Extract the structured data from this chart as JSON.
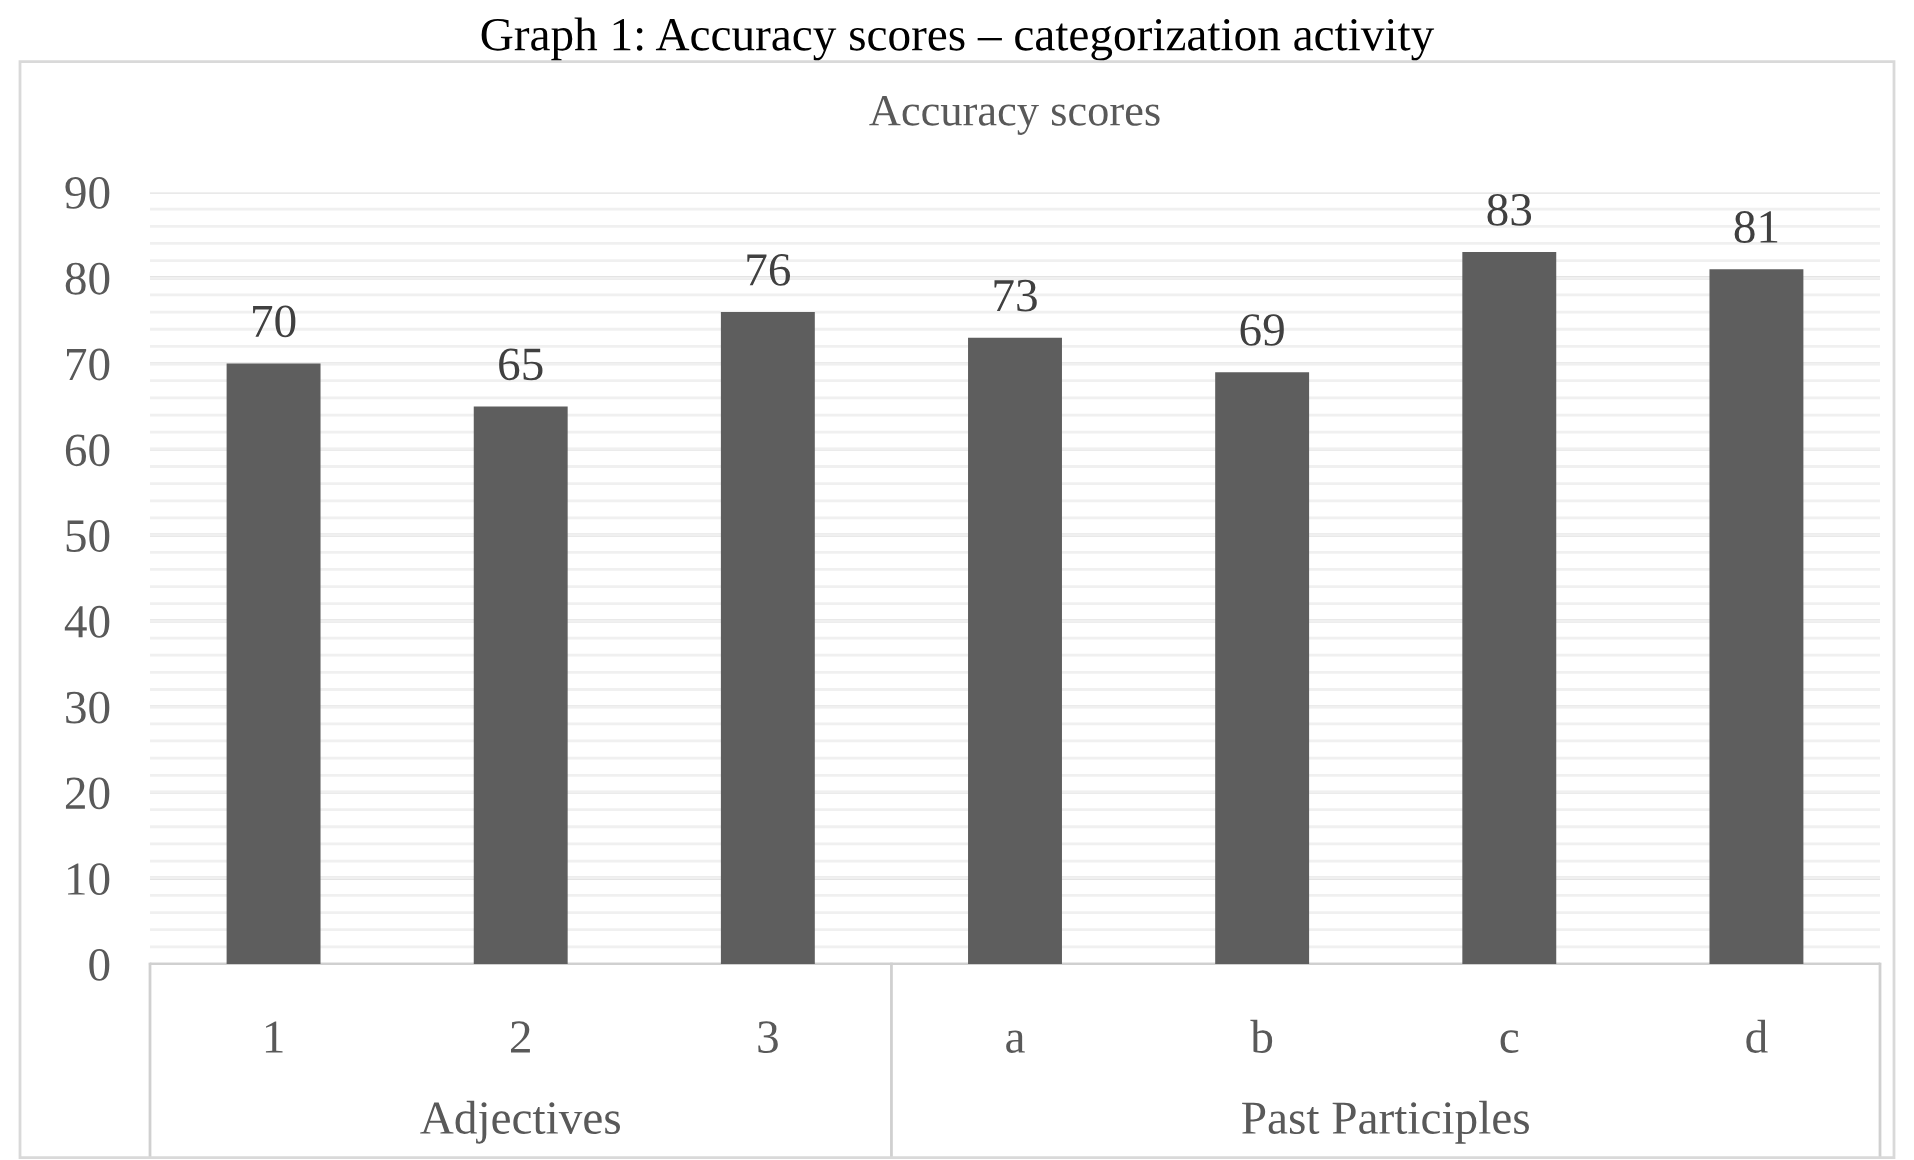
{
  "chart_data": {
    "type": "bar",
    "title": "Accuracy scores",
    "categories": [
      "1",
      "2",
      "3",
      "a",
      "b",
      "c",
      "d"
    ],
    "values": [
      70,
      65,
      76,
      73,
      69,
      83,
      81
    ],
    "color": "#5e5e5e",
    "ylim": [
      0,
      90
    ],
    "yticks": [
      0,
      10,
      20,
      30,
      40,
      50,
      60,
      70,
      80,
      90
    ],
    "grid": true,
    "data_labels": true,
    "annotations": [
      "Graph 1: Accuracy scores – categorization activity",
      "Adjectives",
      "Past Participles"
    ]
  }
}
